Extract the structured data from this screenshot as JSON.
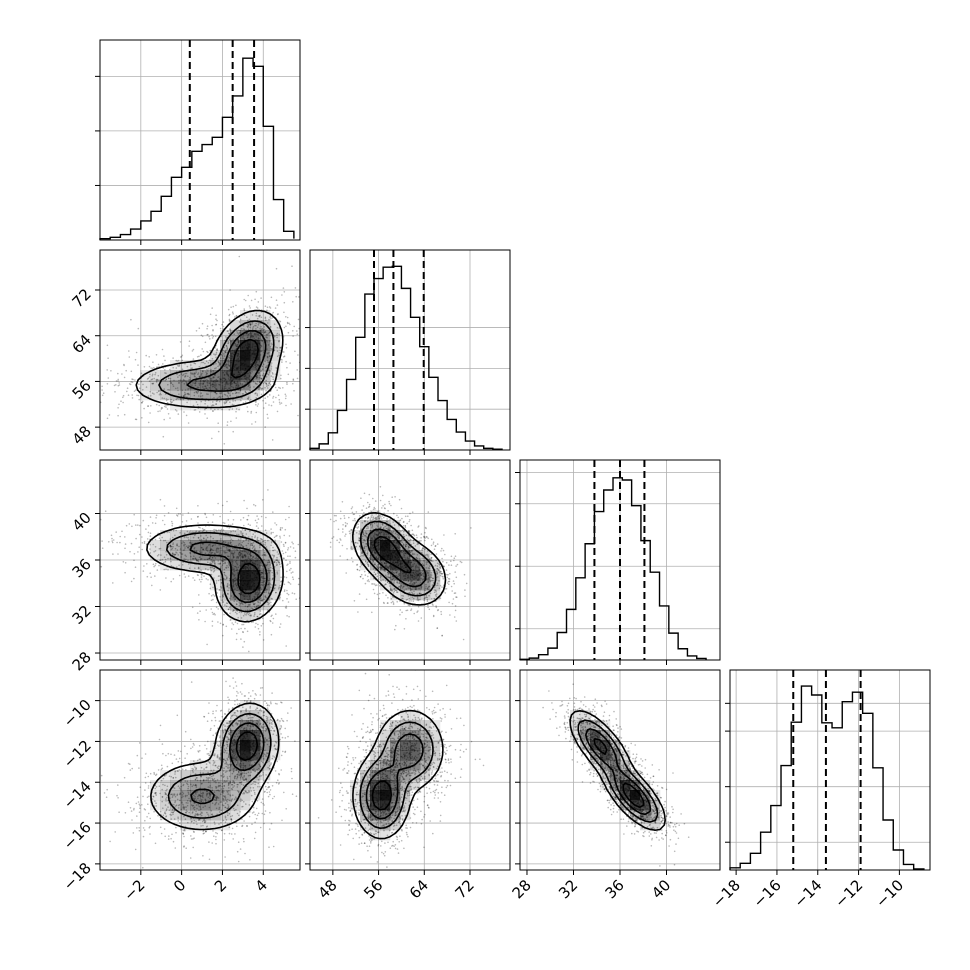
{
  "chart_data": {
    "type": "corner",
    "grid": true,
    "parameters": [
      {
        "index": 0,
        "range": [
          -4,
          5.8
        ],
        "ticks": [
          -2,
          0,
          2,
          4
        ],
        "tick_labels": [
          "−2",
          "0",
          "2",
          "4"
        ]
      },
      {
        "index": 1,
        "range": [
          44,
          79
        ],
        "ticks": [
          48,
          56,
          64,
          72
        ],
        "tick_labels": [
          "48",
          "56",
          "64",
          "72"
        ]
      },
      {
        "index": 2,
        "range": [
          27.4,
          44.6
        ],
        "ticks": [
          28,
          32,
          36,
          40
        ],
        "tick_labels": [
          "28",
          "32",
          "36",
          "40"
        ]
      },
      {
        "index": 3,
        "range": [
          -18.3,
          -8.5
        ],
        "ticks": [
          -18,
          -16,
          -14,
          -12,
          -10
        ],
        "tick_labels": [
          "−18",
          "−16",
          "−14",
          "−12",
          "−10"
        ]
      }
    ],
    "histograms": [
      {
        "param": 0,
        "bin_edges": [
          -4,
          -3.5,
          -3,
          -2.5,
          -2,
          -1.5,
          -1,
          -0.5,
          0,
          0.5,
          1,
          1.5,
          2,
          2.5,
          3,
          3.5,
          4,
          4.5,
          5,
          5.5
        ],
        "counts": [
          0.3,
          0.6,
          1.2,
          2.4,
          4.2,
          6.3,
          9.6,
          13.8,
          16,
          19.5,
          21,
          22.6,
          27,
          31.7,
          40,
          38.2,
          25,
          8.9,
          1.9,
          0.3
        ],
        "quantiles": [
          0.4,
          2.5,
          3.55
        ],
        "ylim": [
          0,
          44
        ],
        "yticks": [
          12,
          24,
          36
        ]
      },
      {
        "param": 1,
        "bin_edges": [
          44,
          45.6,
          47.2,
          48.8,
          50.4,
          52,
          53.6,
          55.2,
          56.8,
          58.4,
          60,
          61.6,
          63.2,
          64.8,
          66.4,
          68,
          69.6,
          71.2,
          72.8,
          74.4,
          76,
          77.6
        ],
        "counts": [
          0.4,
          1.5,
          4.2,
          9.7,
          17.3,
          27.6,
          38.2,
          42,
          44.8,
          45,
          39.6,
          32.5,
          25.3,
          17.8,
          12.1,
          7.5,
          4.4,
          2.2,
          1,
          0.4,
          0.2
        ],
        "quantiles": [
          55.2,
          58.6,
          63.9
        ],
        "ylim": [
          0,
          49
        ],
        "yticks": [
          10,
          20,
          30
        ]
      },
      {
        "param": 2,
        "bin_edges": [
          27.4,
          28.2,
          29,
          29.8,
          30.6,
          31.4,
          32.2,
          33,
          33.8,
          34.6,
          35.4,
          36.2,
          37,
          37.8,
          38.6,
          39.4,
          40.2,
          41,
          41.8,
          42.6,
          43.4
        ],
        "counts": [
          0.2,
          0.6,
          1.7,
          3.8,
          8.8,
          16.2,
          26.3,
          37.2,
          47.5,
          54.4,
          58.3,
          57.6,
          49.4,
          38.2,
          28.1,
          17.3,
          8.6,
          3.6,
          1.3,
          0.5
        ],
        "quantiles": [
          33.8,
          36,
          38.1
        ],
        "ylim": [
          0,
          64
        ],
        "yticks": [
          10,
          30,
          50,
          60
        ]
      },
      {
        "param": 3,
        "bin_edges": [
          -18.3,
          -17.8,
          -17.3,
          -16.8,
          -16.3,
          -15.8,
          -15.3,
          -14.8,
          -14.3,
          -13.8,
          -13.3,
          -12.8,
          -12.3,
          -11.8,
          -11.3,
          -10.8,
          -10.3,
          -9.8,
          -9.3,
          -8.8
        ],
        "counts": [
          0.4,
          1.2,
          3,
          6.8,
          11.6,
          18.8,
          26.6,
          33.1,
          31.5,
          26.5,
          25.6,
          30.3,
          32,
          28.2,
          18.4,
          9,
          3.6,
          1,
          0.2
        ],
        "quantiles": [
          -15.2,
          -13.6,
          -11.9
        ],
        "ylim": [
          0,
          36
        ],
        "yticks": [
          5,
          15,
          25,
          30
        ]
      }
    ],
    "joint_panels": [
      {
        "x": 0,
        "y": 1,
        "modes": [
          {
            "cx": 3.2,
            "cy": 61,
            "sx": 0.85,
            "sy": 3.6,
            "rho": 0.3,
            "w": 0.55
          },
          {
            "cx": 1,
            "cy": 55.5,
            "sx": 1.8,
            "sy": 2.2,
            "rho": 0.05,
            "w": 0.45
          }
        ]
      },
      {
        "x": 0,
        "y": 2,
        "modes": [
          {
            "cx": 3.3,
            "cy": 34.2,
            "sx": 0.8,
            "sy": 1.7,
            "rho": 0.1,
            "w": 0.55
          },
          {
            "cx": 1.2,
            "cy": 37,
            "sx": 1.6,
            "sy": 1.1,
            "rho": 0.0,
            "w": 0.45
          }
        ]
      },
      {
        "x": 0,
        "y": 3,
        "modes": [
          {
            "cx": 3.2,
            "cy": -12.2,
            "sx": 0.75,
            "sy": 1.0,
            "rho": 0.1,
            "w": 0.5
          },
          {
            "cx": 1.0,
            "cy": -14.7,
            "sx": 1.4,
            "sy": 0.9,
            "rho": 0.0,
            "w": 0.5
          }
        ]
      },
      {
        "x": 1,
        "y": 2,
        "modes": [
          {
            "cx": 56.8,
            "cy": 37.2,
            "sx": 2.6,
            "sy": 1.4,
            "rho": -0.3,
            "w": 0.52
          },
          {
            "cx": 62,
            "cy": 34.8,
            "sx": 3.0,
            "sy": 1.4,
            "rho": -0.2,
            "w": 0.48
          }
        ]
      },
      {
        "x": 1,
        "y": 3,
        "modes": [
          {
            "cx": 56.5,
            "cy": -14.7,
            "sx": 2.4,
            "sy": 1.0,
            "rho": 0.0,
            "w": 0.52
          },
          {
            "cx": 61.5,
            "cy": -12.4,
            "sx": 3.0,
            "sy": 1.0,
            "rho": 0.0,
            "w": 0.48
          }
        ]
      },
      {
        "x": 2,
        "y": 3,
        "modes": [
          {
            "cx": 34.3,
            "cy": -12.2,
            "sx": 1.3,
            "sy": 0.85,
            "rho": -0.7,
            "w": 0.48
          },
          {
            "cx": 37.2,
            "cy": -14.7,
            "sx": 1.3,
            "sy": 0.8,
            "rho": -0.7,
            "w": 0.52
          }
        ]
      }
    ]
  }
}
